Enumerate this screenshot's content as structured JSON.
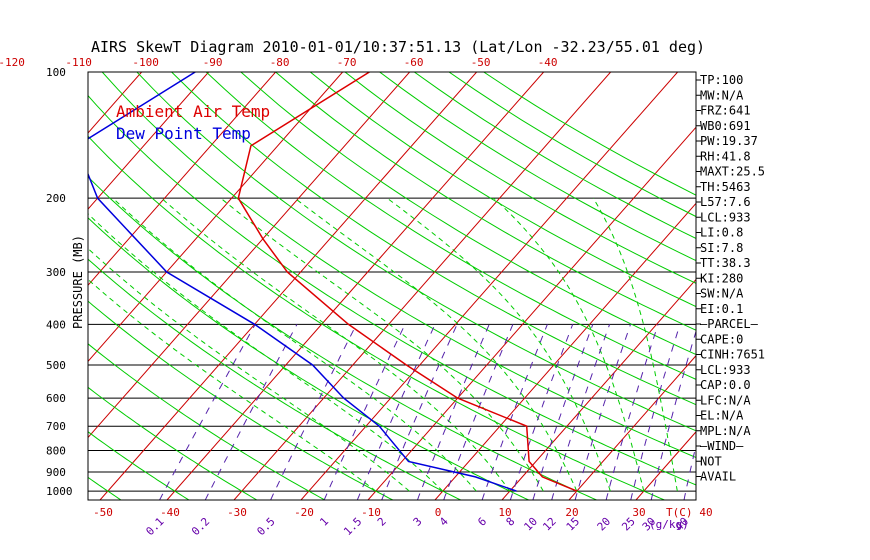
{
  "chart_data": {
    "type": "skewt",
    "title": "AIRS SkewT Diagram 2010-01-01/10:37:51.13 (Lat/Lon -32.23/55.01 deg)",
    "ylabel": "PRESSURE (MB)",
    "xlabel_right": "T(C)",
    "mixing_ratio_unit": "(g/kg)",
    "colors": {
      "air_temp": "#dd0000",
      "dew_point": "#0000dd",
      "isotherm": "#cc0000",
      "dry_adiabat": "#00cc00",
      "moist_adiabat": "#00cc00",
      "mixing_ratio": "#5522aa",
      "isobar": "#000000",
      "mr_label": "#6600aa",
      "temp_label": "#cc0000"
    },
    "legend": [
      {
        "label": "Ambient Air Temp",
        "color": "#dd0000"
      },
      {
        "label": "Dew Point Temp",
        "color": "#0000dd"
      }
    ],
    "pressure_ticks": [
      100,
      200,
      300,
      400,
      500,
      600,
      700,
      800,
      900,
      1000
    ],
    "top_temp_ticks": [
      -120,
      -110,
      -100,
      -90,
      -80,
      -70,
      -60,
      -50,
      -40
    ],
    "bottom_temp_ticks": [
      -50,
      -40,
      -30,
      -20,
      -10,
      0,
      10,
      20,
      30,
      40
    ],
    "mixing_ratio_ticks": [
      "0.1",
      "0.2",
      "0.5",
      "1",
      "1.5",
      "2",
      "3",
      "4",
      "6",
      "8",
      "10",
      "12",
      "15",
      "20",
      "25",
      "30",
      "40"
    ],
    "isotherms": [
      -160,
      -150,
      -140,
      -130,
      -120,
      -110,
      -100,
      -90,
      -80,
      -70,
      -60,
      -50,
      -40,
      -30,
      -20,
      -10,
      0,
      10,
      20,
      30,
      40,
      50
    ],
    "dry_adiabats_theta_c": [
      -60,
      -50,
      -40,
      -30,
      -20,
      -10,
      0,
      10,
      20,
      30,
      40,
      50,
      60,
      70,
      80,
      90,
      100,
      110,
      120,
      130,
      140,
      150,
      160
    ],
    "moist_adiabats_c": [
      -10,
      -5,
      0,
      5,
      10,
      15,
      20,
      25,
      30,
      35
    ],
    "mixing_ratios_gkg": [
      0.1,
      0.2,
      0.5,
      1,
      1.5,
      2,
      3,
      4,
      6,
      8,
      10,
      12,
      15,
      20,
      25,
      30,
      40
    ],
    "air_temp_profile": [
      {
        "p": 100,
        "t": -66.0
      },
      {
        "p": 150,
        "t": -74.0
      },
      {
        "p": 200,
        "t": -69.0
      },
      {
        "p": 250,
        "t": -60.0
      },
      {
        "p": 300,
        "t": -52.0
      },
      {
        "p": 400,
        "t": -36.0
      },
      {
        "p": 500,
        "t": -22.0
      },
      {
        "p": 600,
        "t": -10.0
      },
      {
        "p": 700,
        "t": 4.0
      },
      {
        "p": 850,
        "t": 9.0
      },
      {
        "p": 925,
        "t": 13.0
      },
      {
        "p": 1000,
        "t": 20.0
      }
    ],
    "dew_point_profile": [
      {
        "p": 100,
        "t": -92.0
      },
      {
        "p": 150,
        "t": -100.0
      },
      {
        "p": 200,
        "t": -90.0
      },
      {
        "p": 300,
        "t": -70.0
      },
      {
        "p": 400,
        "t": -50.0
      },
      {
        "p": 500,
        "t": -36.0
      },
      {
        "p": 600,
        "t": -27.0
      },
      {
        "p": 700,
        "t": -18.0
      },
      {
        "p": 850,
        "t": -9.0
      },
      {
        "p": 925,
        "t": 3.0
      },
      {
        "p": 1000,
        "t": 11.0
      }
    ],
    "indices": [
      "TP:100",
      "MW:N/A",
      "FRZ:641",
      "WB0:691",
      "PW:19.37",
      "RH:41.8",
      "MAXT:25.5",
      "TH:5463",
      "L57:7.6",
      "LCL:933",
      "LI:0.8",
      "SI:7.8",
      "TT:38.3",
      "KI:280",
      "SW:N/A",
      "EI:0.1",
      "–PARCEL–",
      "CAPE:0",
      "CINH:7651",
      "LCL:933",
      "CAP:0.0",
      "LFC:N/A",
      "EL:N/A",
      "MPL:N/A",
      "–WIND–",
      " NOT",
      " AVAIL"
    ]
  }
}
